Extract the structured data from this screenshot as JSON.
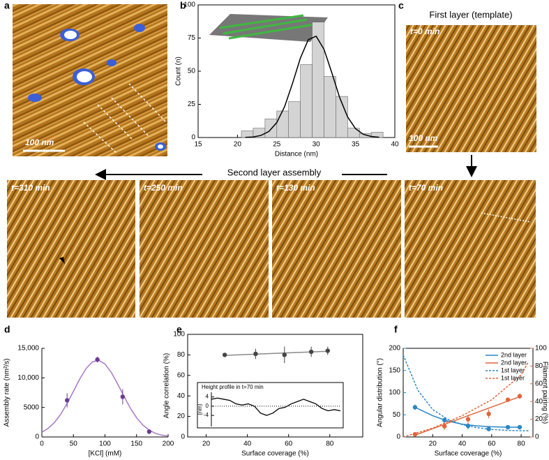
{
  "figure": {
    "panel_labels": [
      "a",
      "b",
      "c",
      "d",
      "e",
      "f"
    ],
    "c_title": "First layer (template)",
    "c_time": "t=0 min",
    "scale_bar_a": "100 nm",
    "scale_bar_c": "100 nm",
    "arrow_label": "Second layer assembly",
    "frames": [
      "t=310 min",
      "t=250 min",
      "t=130 min",
      "t=70 min"
    ]
  },
  "chart_data": [
    {
      "type": "histogram",
      "x_label": "Distance (nm)",
      "y_label": "Count (n)",
      "bins": [
        20.5,
        22,
        23.5,
        25,
        26.5,
        28,
        29.5,
        31,
        32.5,
        34,
        35.5,
        37,
        38.5
      ],
      "counts": [
        5,
        7,
        14,
        20,
        27,
        55,
        87,
        46,
        31,
        7,
        3,
        4
      ],
      "color": "#d4d4d4",
      "fit": {
        "color": "#000000",
        "x": [
          21,
          22,
          23,
          24,
          25,
          26,
          27,
          28,
          29,
          30,
          31,
          32,
          33,
          34,
          35,
          36,
          37,
          38
        ],
        "y": [
          0.1,
          0.4,
          1.6,
          4.6,
          11.3,
          23.4,
          40.9,
          59.9,
          73.8,
          76.4,
          66.5,
          48.7,
          29.9,
          15.5,
          6.7,
          2.4,
          0.8,
          0.2
        ]
      },
      "xlim": [
        15,
        40
      ],
      "xticks": [
        15,
        20,
        25,
        30,
        35,
        40
      ],
      "ylim": [
        0,
        100
      ],
      "yticks": [
        0,
        25,
        50,
        75,
        100
      ]
    },
    {
      "type": "scatter",
      "x_label": "[KCl] (mM)",
      "y_label": "Assembly rate (nm²/s)",
      "x": [
        40,
        88,
        128,
        170
      ],
      "values": [
        6200,
        13100,
        6800,
        900
      ],
      "errors": [
        1200,
        500,
        1300,
        300
      ],
      "color": "#6b3d91",
      "fit": {
        "color": "#a877c9",
        "x": [
          0,
          10,
          20,
          30,
          40,
          50,
          60,
          70,
          80,
          90,
          100,
          110,
          120,
          130,
          140,
          150,
          160,
          170,
          180,
          190,
          200
        ],
        "y": [
          798,
          1455,
          2455,
          3870,
          5670,
          7725,
          9800,
          11570,
          12700,
          12980,
          12340,
          10920,
          8990,
          6890,
          4910,
          3255,
          2010,
          1150,
          615,
          306,
          142
        ]
      },
      "xlim": [
        0,
        200
      ],
      "xticks": [
        0,
        50,
        100,
        150,
        200
      ],
      "ylim": [
        0,
        15000
      ],
      "yticks": [
        0,
        5000,
        {
          "value": 10000,
          "label": "10,000"
        },
        {
          "value": 15000,
          "label": "15,000"
        }
      ]
    },
    {
      "type": "scatter",
      "x_label": "Surface coverage (%)",
      "y_label": "Angle correlation (%)",
      "x": [
        29,
        44,
        58,
        71,
        79
      ],
      "values": [
        80,
        81,
        80,
        83,
        84
      ],
      "errors": [
        2,
        5,
        8,
        5,
        4
      ],
      "color": "#444444",
      "fit": {
        "color": "#8a8a8a",
        "x": [
          29,
          79
        ],
        "y": [
          79.5,
          83.5
        ]
      },
      "xlim": [
        11,
        96
      ],
      "xticks": [
        20,
        40,
        60,
        80
      ],
      "ylim": [
        0,
        100
      ],
      "yticks": [
        0,
        20,
        40,
        60,
        80,
        100
      ]
    },
    {
      "type": "line",
      "title": "Height profile in t=70 min",
      "y_label": "(nm)",
      "values": [
        3,
        3.5,
        3,
        2.5,
        1,
        0.5,
        1,
        0,
        -3,
        -4,
        -3,
        -1,
        -0.5,
        1,
        2,
        3,
        2,
        1,
        -1,
        -2,
        -1.5,
        -2
      ],
      "color": "#000000",
      "hline": 0,
      "ylim": [
        -8.8,
        6
      ],
      "yticks": [
        -4,
        0,
        4
      ]
    },
    {
      "type": "dual_scatter",
      "x_label": "Surface coverage (%)",
      "y_label": "Angular distribution (°)",
      "y2_label": "Filament pairing (%)",
      "y_color": "#2a86c4",
      "y2_color": "#e0643a",
      "xlim": [
        0,
        88
      ],
      "xticks": [
        20,
        40,
        60,
        80
      ],
      "ylim": [
        0,
        200
      ],
      "yticks": [
        0,
        50,
        100,
        150,
        200
      ],
      "y2lim": [
        0,
        100
      ],
      "y2ticks": [
        0,
        20,
        40,
        60,
        80,
        100
      ],
      "legend": "upper right",
      "series": [
        {
          "name": "2nd layer",
          "color": "#2a86c4",
          "axis": "y",
          "x": [
            8,
            28,
            44,
            58,
            71,
            79
          ],
          "values": [
            67,
            38,
            25,
            18,
            22,
            22
          ],
          "errors": [
            6,
            7,
            8,
            5,
            3,
            3
          ],
          "fit": {
            "x": [
              8,
              20,
              30,
              40,
              50,
              60,
              70,
              80
            ],
            "y": [
              67,
              48,
              36,
              29,
              25,
              23,
              22,
              22
            ]
          }
        },
        {
          "name": "2nd layer",
          "color": "#e0643a",
          "axis": "y2",
          "x": [
            8,
            28,
            44,
            58,
            71,
            79
          ],
          "values": [
            3,
            12,
            20,
            26,
            42,
            46
          ],
          "errors": [
            2,
            4,
            5,
            5,
            2,
            3
          ],
          "fit": {
            "x": [
              8,
              80
            ],
            "y": [
              2,
              46
            ]
          }
        },
        {
          "name": "1st layer",
          "color": "#2a86c4",
          "axis": "y",
          "style": "dashed",
          "x": [
            0,
            10,
            20,
            30,
            40,
            50,
            60,
            70,
            80,
            85
          ],
          "values": [
            185,
            105,
            62,
            40,
            28,
            21,
            17,
            15,
            14,
            14
          ]
        },
        {
          "name": "1st layer",
          "color": "#e0643a",
          "axis": "y2",
          "style": "dashed",
          "x": [
            0,
            20,
            40,
            60,
            80,
            85
          ],
          "values": [
            0,
            10,
            24,
            42,
            70,
            85
          ]
        }
      ]
    }
  ]
}
